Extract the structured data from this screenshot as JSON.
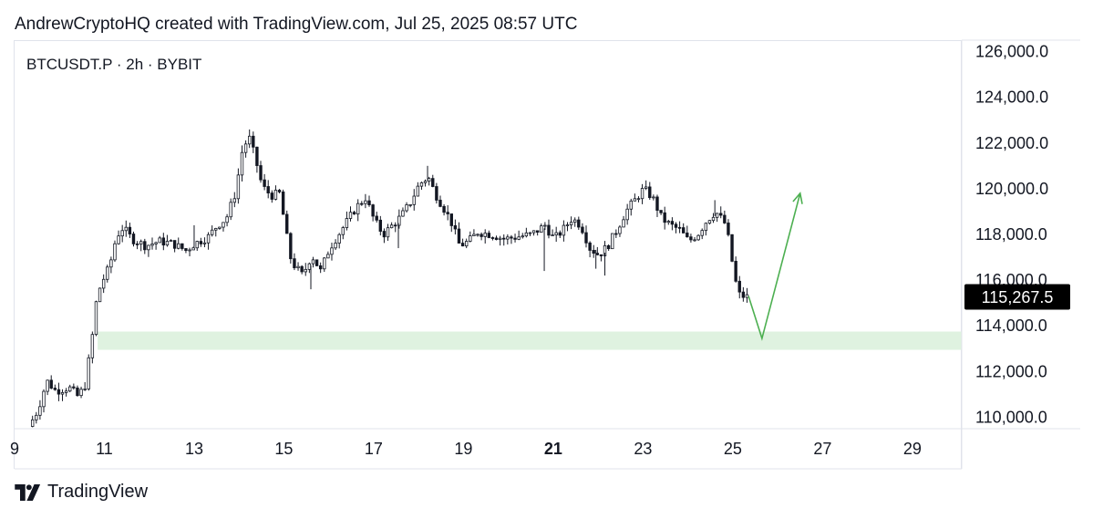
{
  "header": {
    "text": "AndrewCryptoHQ created with TradingView.com, Jul 25, 2025 08:57 UTC"
  },
  "symbol_label": "BTCUSDT.P · 2h · BYBIT",
  "footer": {
    "brand": "TradingView",
    "logo_icon": "tradingview-logo-icon"
  },
  "colors": {
    "candle": "#131722",
    "support_zone": "#dff2e0",
    "arrow": "#4caf50",
    "price_tag_bg": "#000000",
    "price_tag_text": "#ffffff",
    "grid": "#e0e3eb"
  },
  "chart_data": {
    "type": "candlestick",
    "title": "",
    "xlabel": "",
    "ylabel": "",
    "ylim": [
      109500,
      126500
    ],
    "y_ticks": [
      "126,000.0",
      "124,000.0",
      "122,000.0",
      "120,000.0",
      "118,000.0",
      "116,000.0",
      "114,000.0",
      "112,000.0",
      "110,000.0"
    ],
    "y_tick_values": [
      126000,
      124000,
      122000,
      120000,
      118000,
      116000,
      114000,
      112000,
      110000
    ],
    "x_ticks": [
      "9",
      "11",
      "13",
      "15",
      "17",
      "19",
      "21",
      "23",
      "25",
      "27",
      "29"
    ],
    "x_tick_days": [
      9,
      11,
      13,
      15,
      17,
      19,
      21,
      23,
      25,
      27,
      29
    ],
    "x_bold_tick": "21",
    "xlim_days": [
      9,
      30.1
    ],
    "last_price": 115267.5,
    "last_price_label": "115,267.5",
    "support_zone": {
      "low": 112950,
      "high": 113750
    },
    "projection_arrow": [
      {
        "day": 25.35,
        "price": 115300
      },
      {
        "day": 25.65,
        "price": 113450
      },
      {
        "day": 26.5,
        "price": 119800
      }
    ],
    "price_path": [
      [
        9.4,
        109600
      ],
      [
        9.6,
        110300
      ],
      [
        9.8,
        111600
      ],
      [
        10.0,
        111150
      ],
      [
        10.3,
        111300
      ],
      [
        10.5,
        110900
      ],
      [
        10.65,
        111400
      ],
      [
        10.8,
        113300
      ],
      [
        10.9,
        115000
      ],
      [
        11.0,
        115800
      ],
      [
        11.2,
        116600
      ],
      [
        11.35,
        117900
      ],
      [
        11.5,
        118300
      ],
      [
        11.7,
        117800
      ],
      [
        12.0,
        117500
      ],
      [
        12.3,
        117700
      ],
      [
        12.6,
        117600
      ],
      [
        12.9,
        117300
      ],
      [
        13.1,
        117600
      ],
      [
        13.4,
        117900
      ],
      [
        13.6,
        118400
      ],
      [
        13.8,
        118700
      ],
      [
        14.0,
        119800
      ],
      [
        14.15,
        121600
      ],
      [
        14.3,
        122300
      ],
      [
        14.45,
        121300
      ],
      [
        14.6,
        120100
      ],
      [
        14.8,
        119700
      ],
      [
        15.0,
        119800
      ],
      [
        15.1,
        118400
      ],
      [
        15.25,
        116800
      ],
      [
        15.5,
        116200
      ],
      [
        15.7,
        117100
      ],
      [
        15.9,
        116400
      ],
      [
        16.1,
        117400
      ],
      [
        16.3,
        118000
      ],
      [
        16.5,
        118600
      ],
      [
        16.7,
        119200
      ],
      [
        16.9,
        119600
      ],
      [
        17.1,
        118600
      ],
      [
        17.3,
        118000
      ],
      [
        17.5,
        118400
      ],
      [
        17.7,
        118800
      ],
      [
        17.9,
        119400
      ],
      [
        18.1,
        120200
      ],
      [
        18.3,
        120500
      ],
      [
        18.45,
        119800
      ],
      [
        18.6,
        119300
      ],
      [
        18.8,
        118600
      ],
      [
        19.0,
        117500
      ],
      [
        19.2,
        117700
      ],
      [
        19.4,
        118100
      ],
      [
        19.7,
        118000
      ],
      [
        20.0,
        117800
      ],
      [
        20.3,
        117900
      ],
      [
        20.6,
        118000
      ],
      [
        20.9,
        118400
      ],
      [
        21.1,
        117800
      ],
      [
        21.3,
        118200
      ],
      [
        21.5,
        118700
      ],
      [
        21.7,
        118400
      ],
      [
        21.9,
        117400
      ],
      [
        22.1,
        117100
      ],
      [
        22.3,
        117500
      ],
      [
        22.5,
        118200
      ],
      [
        22.7,
        119000
      ],
      [
        22.9,
        119500
      ],
      [
        23.1,
        120000
      ],
      [
        23.3,
        119600
      ],
      [
        23.5,
        118700
      ],
      [
        23.7,
        118400
      ],
      [
        23.9,
        118200
      ],
      [
        24.1,
        117700
      ],
      [
        24.3,
        118000
      ],
      [
        24.5,
        118600
      ],
      [
        24.7,
        119000
      ],
      [
        24.9,
        118500
      ],
      [
        25.0,
        117700
      ],
      [
        25.1,
        116400
      ],
      [
        25.2,
        115400
      ],
      [
        25.35,
        115267.5
      ]
    ],
    "spike_wicks": [
      {
        "day": 15.6,
        "low": 115600
      },
      {
        "day": 17.55,
        "low": 117400
      },
      {
        "day": 20.8,
        "low": 116400
      },
      {
        "day": 21.95,
        "low": 116500
      },
      {
        "day": 22.15,
        "low": 116200
      },
      {
        "day": 13.0,
        "high": 118400
      },
      {
        "day": 18.2,
        "high": 121000
      },
      {
        "day": 24.6,
        "high": 119500
      }
    ]
  }
}
